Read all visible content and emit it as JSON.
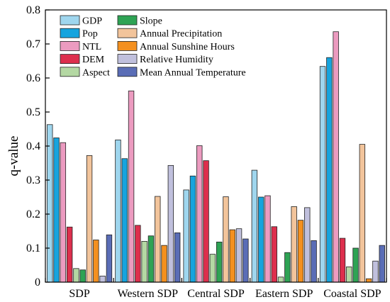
{
  "chart_data": {
    "type": "bar",
    "ylabel": "q-value",
    "xlabel": "",
    "ylim": [
      0,
      0.8
    ],
    "yticks": [
      0,
      0.1,
      0.2,
      0.3,
      0.4,
      0.5,
      0.6,
      0.7,
      0.8
    ],
    "ytick_labels": [
      "0",
      "0.1",
      "0.2",
      "0.3",
      "0.4",
      "0.5",
      "0.6",
      "0.7",
      "0.8"
    ],
    "grid": false,
    "legend_position": "top-left, inside plot",
    "categories": [
      "SDP",
      "Western SDP",
      "Central SDP",
      "Eastern SDP",
      "Coastal SDP"
    ],
    "series": [
      {
        "name": "GDP",
        "color": "#9fd6ee",
        "values": [
          0.463,
          0.418,
          0.271,
          0.329,
          0.634
        ]
      },
      {
        "name": "Pop",
        "color": "#16a4de",
        "values": [
          0.424,
          0.363,
          0.312,
          0.25,
          0.66
        ]
      },
      {
        "name": "NTL",
        "color": "#ec9bc0",
        "values": [
          0.41,
          0.562,
          0.401,
          0.254,
          0.736
        ]
      },
      {
        "name": "DEM",
        "color": "#dd2f4d",
        "values": [
          0.162,
          0.167,
          0.357,
          0.163,
          0.129
        ]
      },
      {
        "name": "Aspect",
        "color": "#b4d8a3",
        "values": [
          0.04,
          0.12,
          0.082,
          0.015,
          0.045
        ]
      },
      {
        "name": "Slope",
        "color": "#2ea354",
        "values": [
          0.036,
          0.136,
          0.118,
          0.087,
          0.1
        ]
      },
      {
        "name": "Annual Precipitation",
        "color": "#f2c49b",
        "values": [
          0.372,
          0.252,
          0.251,
          0.222,
          0.405
        ]
      },
      {
        "name": "Annual Sunshine Hours",
        "color": "#f4901f",
        "values": [
          0.124,
          0.108,
          0.154,
          0.182,
          0.01
        ]
      },
      {
        "name": "Relative Humidity",
        "color": "#c0c0dd",
        "values": [
          0.018,
          0.343,
          0.157,
          0.219,
          0.062
        ]
      },
      {
        "name": "Mean Annual Temperature",
        "color": "#5a6db6",
        "values": [
          0.139,
          0.145,
          0.127,
          0.122,
          0.108
        ]
      }
    ]
  }
}
